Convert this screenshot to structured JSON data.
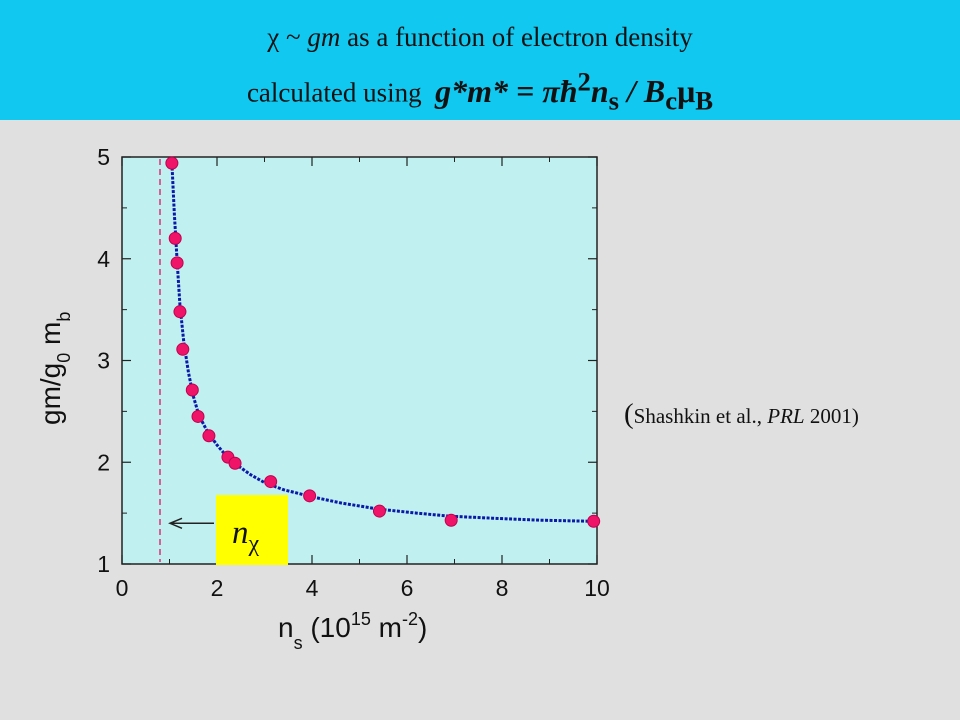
{
  "header": {
    "line1": {
      "symbol": "χ",
      "tilde": "~",
      "gm": "gm",
      "rest": "as a function of electron density"
    },
    "line2": {
      "prefix": "calculated using",
      "formula_a": "g*m* = πħ",
      "formula_sup": "2",
      "formula_n": "n",
      "formula_s": "s",
      "formula_slash": " / B",
      "formula_c": "c",
      "formula_mu": "μ",
      "formula_B": "B"
    }
  },
  "citation": {
    "open": "(",
    "author": "Shashkin et al., ",
    "journal": "PRL",
    "year": " 2001)"
  },
  "colors": {
    "header_bg": "#10c8f0",
    "page_bg": "#e0e0e0",
    "plot_bg": "#c0f0f0",
    "marker": "#f01468",
    "fit_line": "#0a1aa8",
    "dashed_line": "#e0307a",
    "nchi_box": "#ffff00"
  },
  "chart_data": {
    "type": "scatter",
    "xlim": [
      0,
      10
    ],
    "ylim": [
      1,
      5
    ],
    "xticks": [
      0,
      2,
      4,
      6,
      8,
      10
    ],
    "yticks": [
      1,
      2,
      3,
      4,
      5
    ],
    "xlabel": {
      "main": "n",
      "sub": "s",
      "open": " (10",
      "sup": "15",
      "unit": " m",
      "unit_sup": "-2",
      "close": ")"
    },
    "ylabel": {
      "a": "gm/g",
      "sub0": "0",
      "b": " m",
      "subb": "b"
    },
    "grid": false,
    "series": [
      {
        "marker": "circle",
        "x": [
          1.05,
          1.12,
          1.16,
          1.22,
          1.28,
          1.48,
          1.6,
          1.83,
          2.23,
          2.38,
          3.13,
          3.95,
          5.42,
          6.93,
          9.93
        ],
        "y": [
          4.94,
          4.2,
          3.96,
          3.48,
          3.11,
          2.71,
          2.45,
          2.26,
          2.05,
          1.99,
          1.81,
          1.67,
          1.52,
          1.43,
          1.42
        ]
      }
    ],
    "fit_curve": {
      "x": [
        1.05,
        1.1,
        1.16,
        1.22,
        1.3,
        1.4,
        1.5,
        1.62,
        1.8,
        2.0,
        2.2,
        2.4,
        2.7,
        3.0,
        3.4,
        4.0,
        4.6,
        5.4,
        6.2,
        6.9,
        7.8,
        8.8,
        9.93
      ],
      "y": [
        4.94,
        4.45,
        3.98,
        3.55,
        3.18,
        2.88,
        2.65,
        2.46,
        2.3,
        2.17,
        2.06,
        1.98,
        1.88,
        1.8,
        1.73,
        1.66,
        1.6,
        1.54,
        1.5,
        1.47,
        1.45,
        1.43,
        1.42
      ]
    },
    "dashed_vline_x": 0.8,
    "annotation": {
      "label_n": "n",
      "label_sub": "χ",
      "arrow_y": 1.4
    }
  }
}
